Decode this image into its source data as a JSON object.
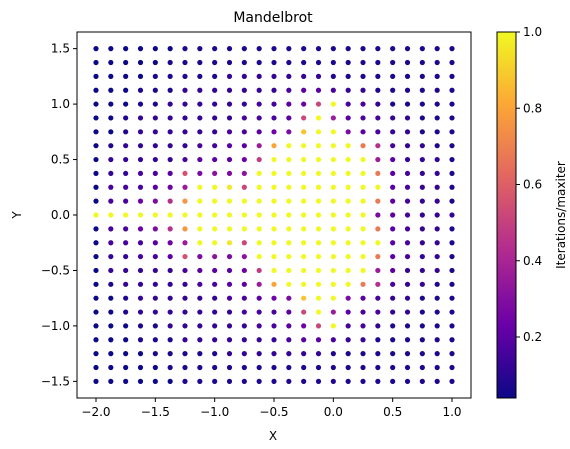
{
  "chart_data": {
    "type": "scatter",
    "title": "Mandelbrot",
    "xlabel": "X",
    "ylabel": "Y",
    "xlim": [
      -2.16,
      1.16
    ],
    "ylim": [
      -1.65,
      1.65
    ],
    "grid": false,
    "x_ticks": [
      -2.0,
      -1.5,
      -1.0,
      -0.5,
      0.0,
      0.5,
      1.0
    ],
    "x_tick_labels": [
      "−2.0",
      "−1.5",
      "−1.0",
      "−0.5",
      "0.0",
      "0.5",
      "1.0"
    ],
    "y_ticks": [
      -1.5,
      -1.0,
      -0.5,
      0.0,
      0.5,
      1.0,
      1.5
    ],
    "y_tick_labels": [
      "−1.5",
      "−1.0",
      "−0.5",
      "0.0",
      "0.5",
      "1.0",
      "1.5"
    ],
    "grid_x": {
      "start": -2.0,
      "stop": 1.0,
      "count": 25
    },
    "grid_y": {
      "start": -1.5,
      "stop": 1.5,
      "count": 25
    },
    "value_definition": "Iterations/maxiter",
    "colormap": "plasma",
    "colormap_stops": [
      "#0d0887",
      "#6a00a8",
      "#b12a90",
      "#e16462",
      "#fca636",
      "#f0f921"
    ],
    "color_range": [
      0.04,
      1.0
    ],
    "colorbar": {
      "label": "Iterations/maxiter",
      "ticks": [
        0.2,
        0.4,
        0.6,
        0.8,
        1.0
      ],
      "tick_labels": [
        "0.2",
        "0.4",
        "0.6",
        "0.8",
        "1.0"
      ]
    },
    "max_iterations": 25
  }
}
